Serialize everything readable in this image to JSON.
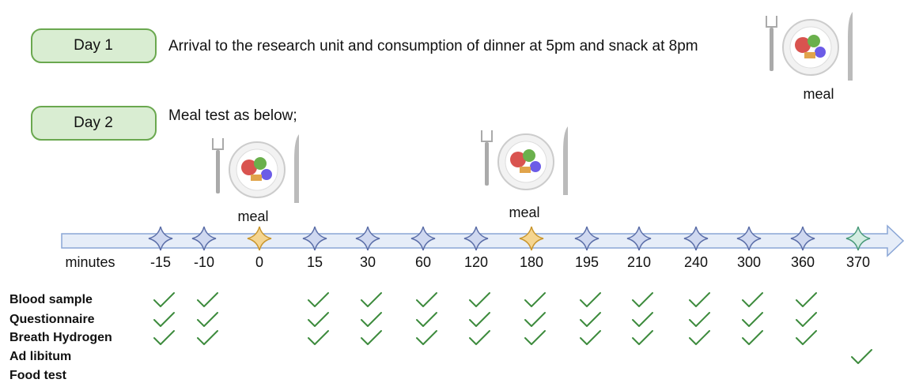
{
  "days": [
    {
      "label": "Day 1",
      "text": "Arrival to the research unit and consumption of dinner at 5pm and snack at 8pm"
    },
    {
      "label": "Day 2",
      "text": "Meal test as below;"
    }
  ],
  "meals": [
    "meal",
    "meal",
    "meal"
  ],
  "timeline": {
    "axis_label": "minutes",
    "points": [
      {
        "label": -15,
        "color": "blue"
      },
      {
        "label": -10,
        "color": "blue"
      },
      {
        "label": 0,
        "color": "gold"
      },
      {
        "label": 15,
        "color": "blue"
      },
      {
        "label": 30,
        "color": "blue"
      },
      {
        "label": 60,
        "color": "blue"
      },
      {
        "label": 120,
        "color": "blue"
      },
      {
        "label": 180,
        "color": "gold"
      },
      {
        "label": 195,
        "color": "blue"
      },
      {
        "label": 210,
        "color": "blue"
      },
      {
        "label": 240,
        "color": "blue"
      },
      {
        "label": 300,
        "color": "blue"
      },
      {
        "label": 360,
        "color": "blue"
      },
      {
        "label": 370,
        "color": "green"
      }
    ]
  },
  "rows": [
    {
      "lines": [
        "Blood sample"
      ],
      "checks": [
        true,
        true,
        false,
        true,
        true,
        true,
        true,
        true,
        true,
        true,
        true,
        true,
        true,
        false
      ]
    },
    {
      "lines": [
        "Questionnaire"
      ],
      "checks": [
        true,
        true,
        false,
        true,
        true,
        true,
        true,
        true,
        true,
        true,
        true,
        true,
        true,
        false
      ]
    },
    {
      "lines": [
        "Breath Hydrogen"
      ],
      "checks": [
        true,
        true,
        false,
        true,
        true,
        true,
        true,
        true,
        true,
        true,
        true,
        true,
        true,
        false
      ]
    },
    {
      "lines": [
        "Ad libitum",
        "Food test"
      ],
      "checks": [
        false,
        false,
        false,
        false,
        false,
        false,
        false,
        false,
        false,
        false,
        false,
        false,
        false,
        true
      ]
    }
  ]
}
